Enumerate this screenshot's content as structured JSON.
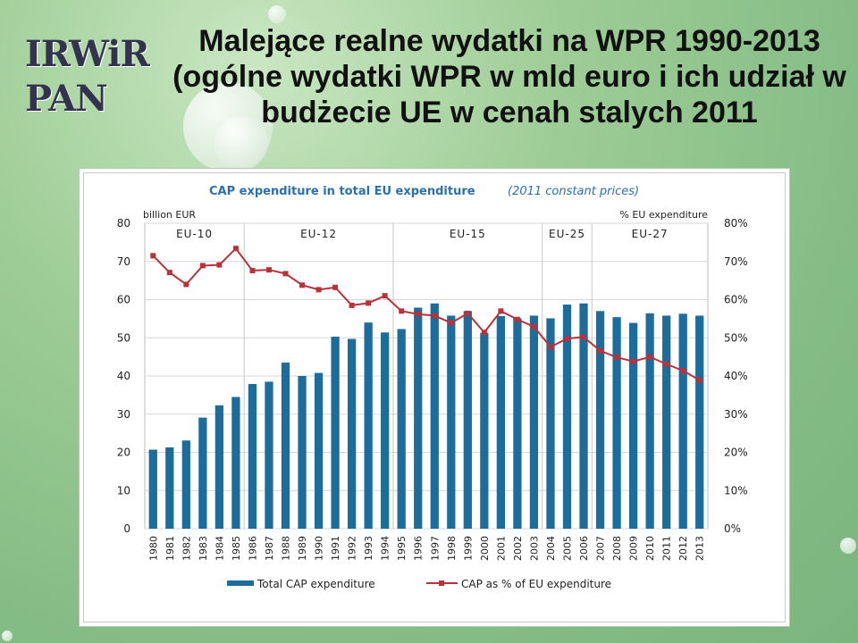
{
  "slide": {
    "logo_text": "IRWiR PAN",
    "title_lines": [
      "Malejące realne wydatki na WPR 1990-2013",
      "(ogólne wydatki WPR w mld euro i ich udział w",
      "budżecie UE  w cenah stalych 2011"
    ]
  },
  "chart_data": {
    "type": "bar",
    "title": "CAP expenditure in total EU expenditure",
    "subtitle": "(2011 constant prices)",
    "ylabel_left": "billion EUR",
    "ylabel_right": "% EU expenditure",
    "ylim_left": [
      0,
      80
    ],
    "ylim_right": [
      0,
      80
    ],
    "yticks_left": [
      "0",
      "10",
      "20",
      "30",
      "40",
      "50",
      "60",
      "70",
      "80"
    ],
    "yticks_right": [
      "0%",
      "10%",
      "20%",
      "30%",
      "40%",
      "50%",
      "60%",
      "70%",
      "80%"
    ],
    "grid": true,
    "legend_position": "bottom",
    "categories": [
      "1980",
      "1981",
      "1982",
      "1983",
      "1984",
      "1985",
      "1986",
      "1987",
      "1988",
      "1989",
      "1990",
      "1991",
      "1992",
      "1993",
      "1994",
      "1995",
      "1996",
      "1997",
      "1998",
      "1999",
      "2000",
      "2001",
      "2002",
      "2003",
      "2004",
      "2005",
      "2006",
      "2007",
      "2008",
      "2009",
      "2010",
      "2011",
      "2012",
      "2013"
    ],
    "series": [
      {
        "name": "Total CAP expenditure",
        "type": "bar",
        "axis": "left",
        "color": "#1c6c9c",
        "values": [
          20.7,
          21.3,
          23.1,
          29.1,
          32.3,
          34.5,
          37.9,
          38.5,
          43.5,
          40.0,
          40.8,
          50.3,
          49.7,
          54.0,
          51.4,
          52.3,
          57.9,
          59.0,
          55.8,
          57.0,
          51.3,
          55.7,
          55.1,
          55.8,
          55.1,
          58.7,
          59.0,
          57.0,
          55.4,
          53.9,
          56.4,
          55.8,
          56.3,
          55.8
        ]
      },
      {
        "name": "CAP as % of EU expenditure",
        "type": "line",
        "axis": "right",
        "color": "#b8323a",
        "values": [
          71.5,
          67.1,
          64.0,
          68.9,
          69.1,
          73.4,
          67.6,
          67.8,
          66.8,
          63.8,
          62.6,
          63.2,
          58.5,
          59.1,
          61.0,
          57.0,
          56.2,
          55.8,
          53.9,
          56.4,
          51.4,
          57.0,
          54.8,
          52.9,
          47.6,
          49.8,
          50.2,
          46.6,
          44.9,
          43.8,
          45.0,
          43.1,
          41.4,
          38.9
        ]
      }
    ],
    "annotations": [
      {
        "label": "EU-10",
        "start": "1980",
        "end": "1985"
      },
      {
        "label": "EU-12",
        "start": "1986",
        "end": "1994"
      },
      {
        "label": "EU-15",
        "start": "1995",
        "end": "2003"
      },
      {
        "label": "EU-25",
        "start": "2004",
        "end": "2006"
      },
      {
        "label": "EU-27",
        "start": "2007",
        "end": "2013"
      }
    ]
  }
}
